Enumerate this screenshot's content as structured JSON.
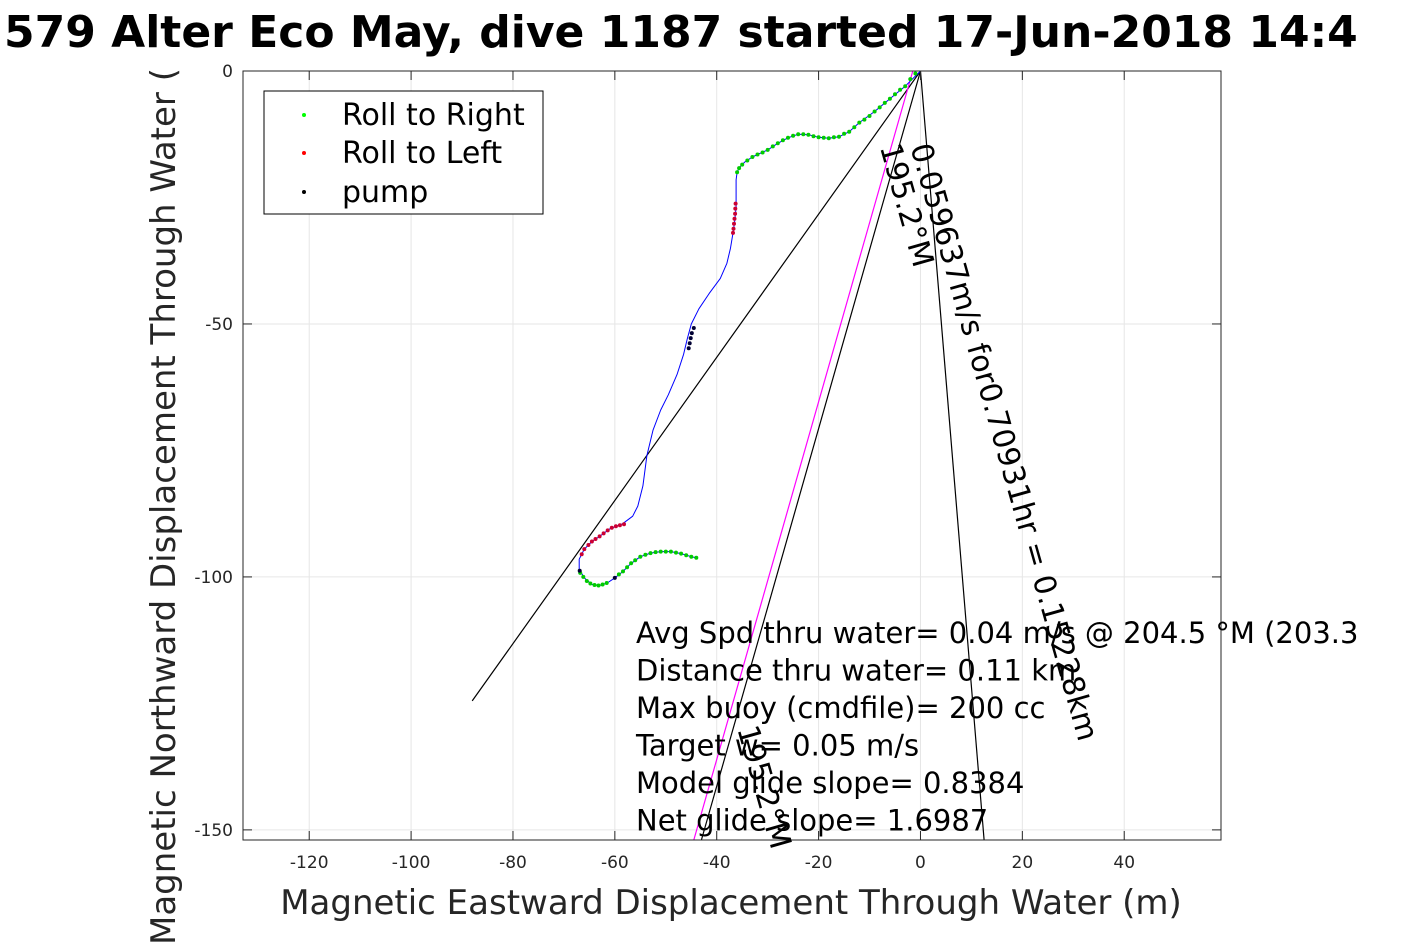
{
  "chart_data": {
    "type": "line",
    "title": "579 Alter Eco May, dive 1187 started 17-Jun-2018 14:4",
    "xlabel": "Magnetic Eastward Displacement Through Water (m)",
    "ylabel": "Magnetic Northward Displacement Through Water (",
    "xlim": [
      -133,
      59
    ],
    "ylim": [
      -152,
      0
    ],
    "xticks": [
      -120,
      -100,
      -80,
      -60,
      -40,
      -20,
      0,
      20,
      40
    ],
    "yticks": [
      -150,
      -100,
      -50,
      0
    ],
    "xtick_labels": [
      "-120",
      "-100",
      "-80",
      "-60",
      "-40",
      "-20",
      "0",
      "20",
      "40"
    ],
    "ytick_labels": [
      "-150",
      "-100",
      "-50",
      "0"
    ],
    "grid": true,
    "legend_position": "top-left",
    "legend": [
      {
        "label": "Roll to Right",
        "color": "#00ff00"
      },
      {
        "label": "Roll to Left",
        "color": "#ff0000"
      },
      {
        "label": "pump",
        "color": "#000000"
      }
    ],
    "track": {
      "color": "#0000ff",
      "points": [
        [
          0,
          0
        ],
        [
          -3,
          -3
        ],
        [
          -6,
          -5.5
        ],
        [
          -9,
          -8
        ],
        [
          -12,
          -10.2
        ],
        [
          -14,
          -12
        ],
        [
          -16,
          -13
        ],
        [
          -18,
          -13.3
        ],
        [
          -20,
          -13.1
        ],
        [
          -22,
          -12.6
        ],
        [
          -24,
          -12.5
        ],
        [
          -26,
          -13.2
        ],
        [
          -28,
          -14.3
        ],
        [
          -30,
          -15.6
        ],
        [
          -32,
          -16.5
        ],
        [
          -33,
          -17
        ],
        [
          -34.5,
          -18
        ],
        [
          -35.5,
          -19
        ],
        [
          -36,
          -20
        ],
        [
          -36.2,
          -21.5
        ],
        [
          -36.2,
          -24
        ],
        [
          -36.2,
          -27
        ],
        [
          -36.5,
          -30
        ],
        [
          -36.8,
          -32
        ],
        [
          -37.3,
          -35
        ],
        [
          -38,
          -38
        ],
        [
          -39.3,
          -41
        ],
        [
          -41.5,
          -44
        ],
        [
          -43.5,
          -47
        ],
        [
          -45,
          -50
        ],
        [
          -45.8,
          -53
        ],
        [
          -46.5,
          -56
        ],
        [
          -47.8,
          -60
        ],
        [
          -49.5,
          -64
        ],
        [
          -51,
          -67
        ],
        [
          -52.5,
          -71
        ],
        [
          -53.7,
          -76
        ],
        [
          -54.5,
          -82
        ],
        [
          -55.5,
          -86
        ],
        [
          -56.5,
          -88
        ],
        [
          -58.5,
          -89.5
        ],
        [
          -61,
          -90.5
        ],
        [
          -63,
          -92
        ],
        [
          -64.5,
          -93
        ],
        [
          -66,
          -94.5
        ],
        [
          -67,
          -96.5
        ],
        [
          -67,
          -98.5
        ],
        [
          -66,
          -100.2
        ],
        [
          -64.5,
          -101.5
        ],
        [
          -63,
          -101.7
        ],
        [
          -61.5,
          -101.2
        ],
        [
          -60,
          -100.2
        ],
        [
          -58.5,
          -99
        ],
        [
          -57,
          -97.5
        ],
        [
          -55,
          -96
        ],
        [
          -53,
          -95.3
        ],
        [
          -51,
          -95
        ],
        [
          -49,
          -95
        ],
        [
          -47,
          -95.4
        ],
        [
          -45,
          -96
        ],
        [
          -44,
          -96.2
        ]
      ]
    },
    "markers": {
      "roll_right": [
        [
          -1,
          -0.5
        ],
        [
          -2,
          -1.6
        ],
        [
          -3,
          -3
        ],
        [
          -4,
          -3.7
        ],
        [
          -5,
          -4.6
        ],
        [
          -6,
          -5.5
        ],
        [
          -7,
          -6.3
        ],
        [
          -8,
          -7.2
        ],
        [
          -9,
          -8
        ],
        [
          -10,
          -8.9
        ],
        [
          -11,
          -9.6
        ],
        [
          -12,
          -10.2
        ],
        [
          -13,
          -11.1
        ],
        [
          -14,
          -12
        ],
        [
          -15,
          -12.4
        ],
        [
          -16,
          -13
        ],
        [
          -17,
          -13.1
        ],
        [
          -18,
          -13.3
        ],
        [
          -19,
          -13.2
        ],
        [
          -20,
          -13.1
        ],
        [
          -21,
          -12.9
        ],
        [
          -22,
          -12.6
        ],
        [
          -23,
          -12.5
        ],
        [
          -24,
          -12.5
        ],
        [
          -25,
          -12.8
        ],
        [
          -26,
          -13.2
        ],
        [
          -27,
          -13.7
        ],
        [
          -28,
          -14.3
        ],
        [
          -29,
          -14.9
        ],
        [
          -30,
          -15.6
        ],
        [
          -31,
          -16.1
        ],
        [
          -32,
          -16.5
        ],
        [
          -33,
          -17
        ],
        [
          -34,
          -17.7
        ],
        [
          -35,
          -18.5
        ],
        [
          -35.6,
          -19.2
        ],
        [
          -36,
          -20
        ],
        [
          -66.8,
          -99.2
        ],
        [
          -66.2,
          -100
        ],
        [
          -65.5,
          -100.8
        ],
        [
          -64.8,
          -101.3
        ],
        [
          -64,
          -101.6
        ],
        [
          -63.2,
          -101.7
        ],
        [
          -62.4,
          -101.5
        ],
        [
          -61.6,
          -101.2
        ],
        [
          -59.2,
          -99.5
        ],
        [
          -58.4,
          -98.9
        ],
        [
          -57.6,
          -98.1
        ],
        [
          -56.8,
          -97.3
        ],
        [
          -56,
          -96.7
        ],
        [
          -55,
          -96
        ],
        [
          -54,
          -95.6
        ],
        [
          -53,
          -95.3
        ],
        [
          -52,
          -95.1
        ],
        [
          -51,
          -95
        ],
        [
          -50,
          -95
        ],
        [
          -49,
          -95
        ],
        [
          -48,
          -95.2
        ],
        [
          -47,
          -95.4
        ],
        [
          -46,
          -95.7
        ],
        [
          -45,
          -96
        ],
        [
          -44,
          -96.2
        ]
      ],
      "roll_left": [
        [
          -36.3,
          -26.2
        ],
        [
          -36.35,
          -27.2
        ],
        [
          -36.4,
          -28.2
        ],
        [
          -36.5,
          -29.2
        ],
        [
          -36.6,
          -30.2
        ],
        [
          -36.7,
          -31.2
        ],
        [
          -36.8,
          -32
        ],
        [
          -58.2,
          -89.6
        ],
        [
          -59,
          -89.8
        ],
        [
          -59.8,
          -90
        ],
        [
          -60.6,
          -90.3
        ],
        [
          -61.4,
          -90.8
        ],
        [
          -62.2,
          -91.4
        ],
        [
          -63,
          -92
        ],
        [
          -63.8,
          -92.5
        ],
        [
          -64.5,
          -93
        ],
        [
          -65.2,
          -93.7
        ],
        [
          -66,
          -94.5
        ],
        [
          -66.5,
          -95.5
        ]
      ],
      "pump": [
        [
          -44.5,
          -50.8
        ],
        [
          -44.9,
          -51.8
        ],
        [
          -45.1,
          -52.8
        ],
        [
          -45.3,
          -53.8
        ],
        [
          -45.5,
          -54.8
        ],
        [
          -66.9,
          -98.8
        ],
        [
          -60,
          -100.2
        ]
      ]
    },
    "reference_lines": [
      {
        "color": "#000000",
        "points": [
          [
            0,
            0
          ],
          [
            -88,
            -124.5
          ]
        ]
      },
      {
        "color": "#000000",
        "points": [
          [
            0,
            0
          ],
          [
            -43,
            -152
          ]
        ]
      },
      {
        "color": "#000000",
        "points": [
          [
            0,
            0
          ],
          [
            12.5,
            -152
          ]
        ]
      },
      {
        "color": "#ff00ff",
        "points": [
          [
            -1.5,
            0
          ],
          [
            -44.5,
            -152
          ]
        ]
      }
    ],
    "annotations": [
      {
        "text": "0.059637m/s for0.70931hr = 0.15228km",
        "x": -2,
        "y": -15,
        "angle": 74.2
      },
      {
        "text": "195.2°M",
        "x": -8,
        "y": -15,
        "angle": 74.2
      },
      {
        "text": "195.2°M",
        "x": -36,
        "y": -130,
        "angle": 74.2
      }
    ],
    "stats": [
      "Avg Spd thru water=  0.04 m/s @ 204.5 °M (203.3",
      "Distance thru water=  0.11 km",
      "Max buoy (cmdfile)= 200 cc",
      "Target w= 0.05 m/s",
      "Model glide slope= 0.8384",
      "Net glide slope= 1.6987"
    ]
  }
}
